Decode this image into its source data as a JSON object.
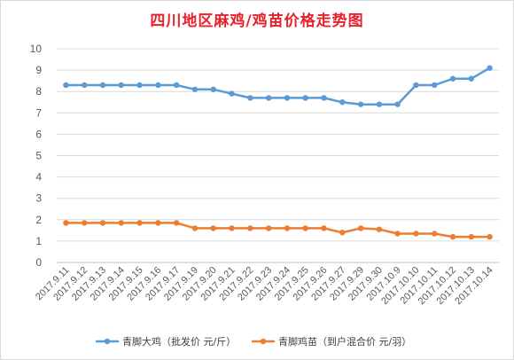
{
  "chart_data": {
    "type": "line",
    "title": "四川地区麻鸡/鸡苗价格走势图",
    "xlabel": "",
    "ylabel": "",
    "ylim": [
      0,
      10
    ],
    "yticks": [
      0,
      1,
      2,
      3,
      4,
      5,
      6,
      7,
      8,
      9,
      10
    ],
    "grid": true,
    "legend_position": "bottom",
    "x": [
      "2017.9.11",
      "2017.9.12",
      "2017.9.13",
      "2017.9.14",
      "2017.9.15",
      "2017.9.16",
      "2017.9.17",
      "2017.9.19",
      "2017.9.20",
      "2017.9.21",
      "2017.9.22",
      "2017.9.23",
      "2017.9.24",
      "2017.9.25",
      "2017.9.26",
      "2017.9.27",
      "2017.9.29",
      "2017.9.30",
      "2017.10.9",
      "2017.10.10",
      "2017.10.11",
      "2017.10.12",
      "2017.10.13",
      "2017.10.14"
    ],
    "series": [
      {
        "name": "青脚大鸡（批发价 元/斤）",
        "color": "#5b9bd5",
        "values": [
          8.3,
          8.3,
          8.3,
          8.3,
          8.3,
          8.3,
          8.3,
          8.1,
          8.1,
          7.9,
          7.7,
          7.7,
          7.7,
          7.7,
          7.7,
          7.5,
          7.4,
          7.4,
          7.4,
          8.3,
          8.3,
          8.6,
          8.6,
          9.1
        ]
      },
      {
        "name": "青脚鸡苗（到户混合价 元/羽）",
        "color": "#ed7d31",
        "values": [
          1.85,
          1.85,
          1.85,
          1.85,
          1.85,
          1.85,
          1.85,
          1.6,
          1.6,
          1.6,
          1.6,
          1.6,
          1.6,
          1.6,
          1.6,
          1.4,
          1.6,
          1.55,
          1.35,
          1.35,
          1.35,
          1.2,
          1.2,
          1.2
        ]
      }
    ]
  }
}
